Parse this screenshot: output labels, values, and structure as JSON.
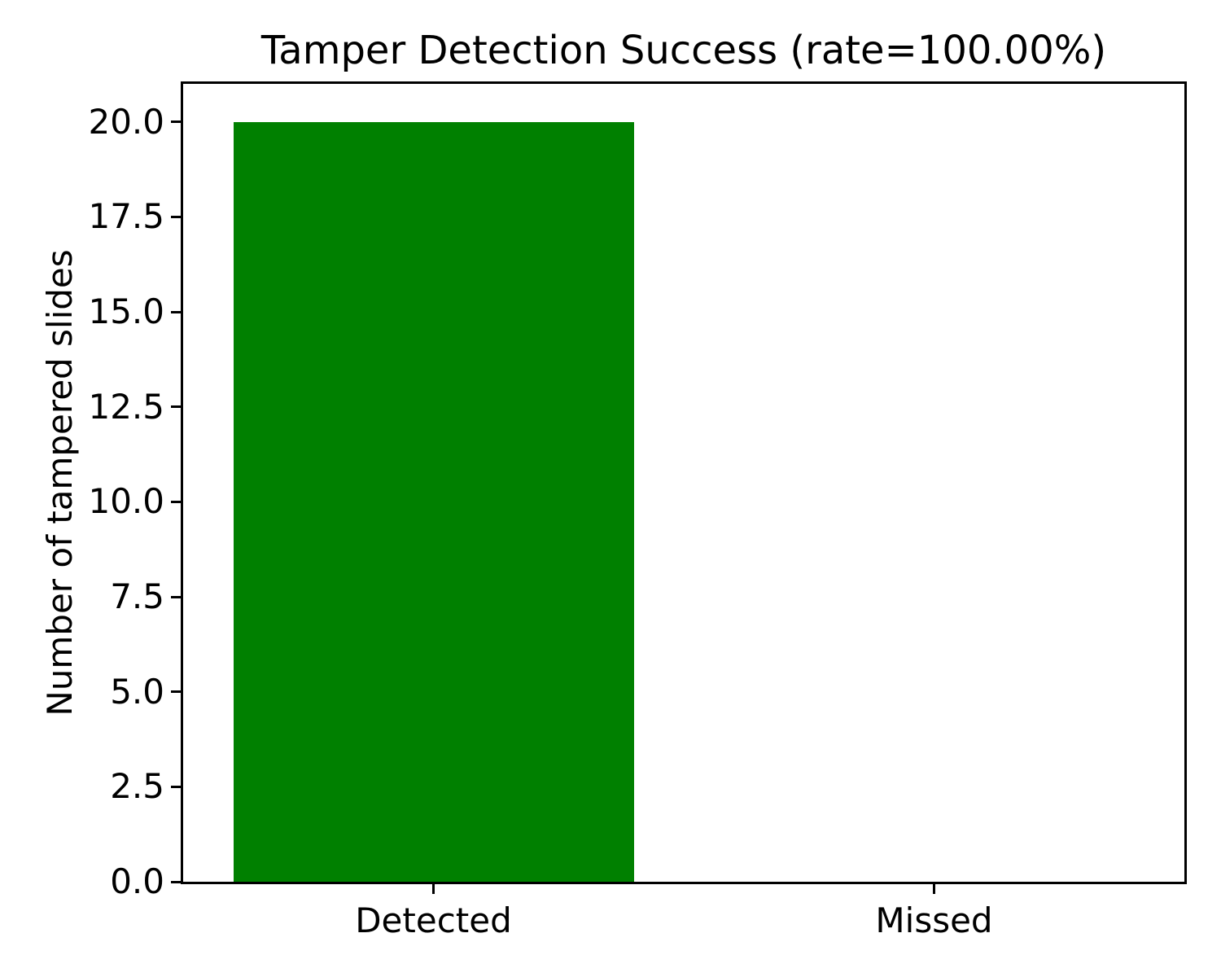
{
  "chart_data": {
    "type": "bar",
    "title": "Tamper Detection Success (rate=100.00%)",
    "xlabel": "",
    "ylabel": "Number of tampered slides",
    "categories": [
      "Detected",
      "Missed"
    ],
    "values": [
      20,
      0
    ],
    "bar_colors": [
      "#008000",
      "#008000"
    ],
    "ylim": [
      0,
      21
    ],
    "yticks": [
      0.0,
      2.5,
      5.0,
      7.5,
      10.0,
      12.5,
      15.0,
      17.5,
      20.0
    ],
    "ytick_labels": [
      "0.0",
      "2.5",
      "5.0",
      "7.5",
      "10.0",
      "12.5",
      "15.0",
      "17.5",
      "20.0"
    ],
    "grid": false,
    "legend": null,
    "spine_color": "#000000",
    "text_color": "#000000",
    "background_color": "#ffffff"
  }
}
